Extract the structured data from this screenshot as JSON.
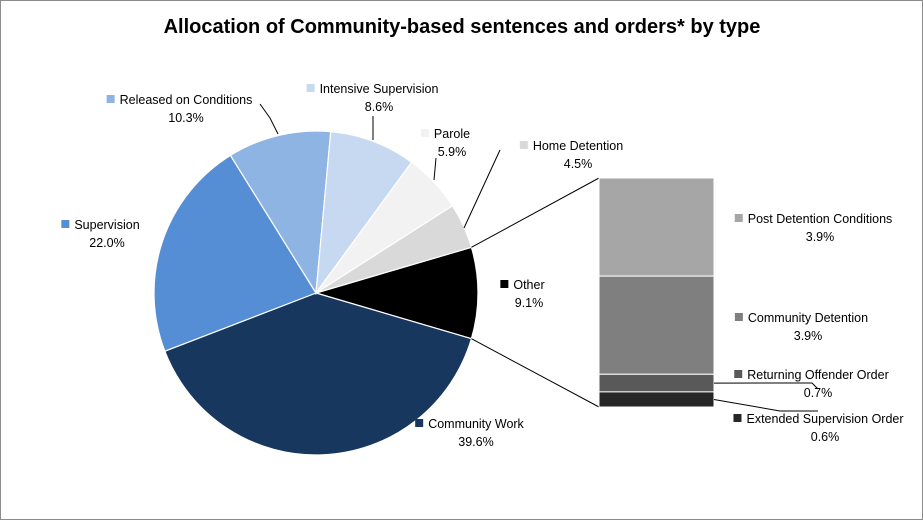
{
  "chart_data": {
    "type": "pie",
    "title": "Allocation of Community-based sentences and orders* by type",
    "series": [
      {
        "name": "Other",
        "value": 9.1,
        "label": "9.1%",
        "color": "#000000"
      },
      {
        "name": "Community Work",
        "value": 39.6,
        "label": "39.6%",
        "color": "#17375e"
      },
      {
        "name": "Supervision",
        "value": 22.0,
        "label": "22.0%",
        "color": "#558ed5"
      },
      {
        "name": "Released on Conditions",
        "value": 10.3,
        "label": "10.3%",
        "color": "#8eb4e3"
      },
      {
        "name": "Intensive Supervision",
        "value": 8.6,
        "label": "8.6%",
        "color": "#c6d9f1"
      },
      {
        "name": "Parole",
        "value": 5.9,
        "label": "5.9%",
        "color": "#f2f2f2"
      },
      {
        "name": "Home Detention",
        "value": 4.5,
        "label": "4.5%",
        "color": "#d9d9d9"
      }
    ],
    "breakdown_of": "Other",
    "breakdown": [
      {
        "name": "Post Detention Conditions",
        "value": 3.9,
        "label": "3.9%",
        "color": "#a6a6a6"
      },
      {
        "name": "Community Detention",
        "value": 3.9,
        "label": "3.9%",
        "color": "#7f7f7f"
      },
      {
        "name": "Returning Offender Order",
        "value": 0.7,
        "label": "0.7%",
        "color": "#595959"
      },
      {
        "name": "Extended Supervision Order",
        "value": 0.6,
        "label": "0.6%",
        "color": "#262626"
      }
    ]
  }
}
